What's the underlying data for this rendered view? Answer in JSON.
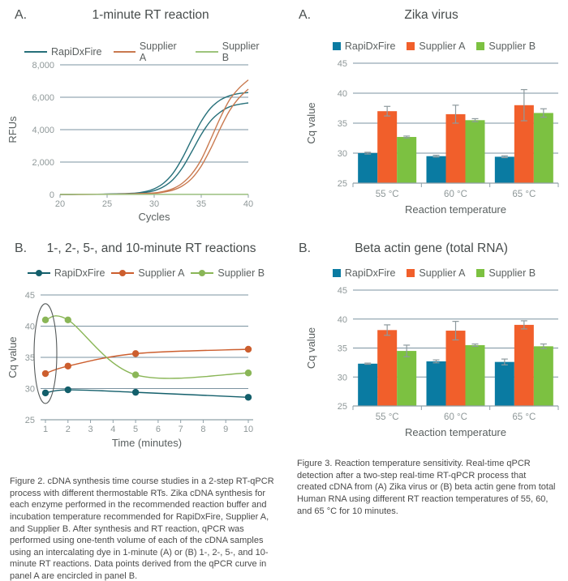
{
  "panels": {
    "fig2a_label": "A.",
    "fig2b_label": "B.",
    "fig3a_label": "A.",
    "fig3b_label": "B."
  },
  "colors": {
    "ampline_series": [
      "#26707a",
      "#c9794f",
      "#9dc47c"
    ],
    "timeline_series": [
      "#135f6b",
      "#cc5e2e",
      "#8ab657"
    ],
    "bar_series": [
      "#0a7ba2",
      "#f15f2b",
      "#7cc141"
    ],
    "gridline": "#7b93a0",
    "axis": "#8fa0a8",
    "tick_text": "#8f9899",
    "axis_title": "#5a6060",
    "error_bar": "#8e9a9e",
    "annotation": "#555a5a"
  },
  "chart_data": [
    {
      "id": "one-minute-rt-amplification",
      "type": "line",
      "panel": "A.",
      "title": "1-minute RT reaction",
      "xlabel": "Cycles",
      "ylabel": "RFUs",
      "xlim": [
        20,
        40
      ],
      "xticks": [
        20,
        25,
        30,
        35,
        40
      ],
      "ylim": [
        0,
        8000
      ],
      "yticks": [
        0,
        2000,
        4000,
        6000,
        8000
      ],
      "grid": true,
      "legend": [
        "RapiDxFire",
        "Supplier A",
        "Supplier B"
      ],
      "series": [
        {
          "name": "RapiDxFire",
          "replicate": 1,
          "points": [
            [
              20,
              5
            ],
            [
              22,
              8
            ],
            [
              24,
              15
            ],
            [
              26,
              40
            ],
            [
              28,
              85
            ],
            [
              29,
              170
            ],
            [
              30,
              350
            ],
            [
              31,
              700
            ],
            [
              32,
              1310
            ],
            [
              33,
              2250
            ],
            [
              34,
              3410
            ],
            [
              35,
              4510
            ],
            [
              36,
              5330
            ],
            [
              37,
              5820
            ],
            [
              38,
              6090
            ],
            [
              39,
              6230
            ],
            [
              40,
              6290
            ]
          ]
        },
        {
          "name": "RapiDxFire",
          "replicate": 2,
          "points": [
            [
              20,
              5
            ],
            [
              22,
              7
            ],
            [
              24,
              12
            ],
            [
              26,
              30
            ],
            [
              28,
              60
            ],
            [
              29,
              120
            ],
            [
              30,
              235
            ],
            [
              31,
              480
            ],
            [
              32,
              920
            ],
            [
              33,
              1650
            ],
            [
              34,
              2650
            ],
            [
              35,
              3700
            ],
            [
              36,
              4540
            ],
            [
              37,
              5070
            ],
            [
              38,
              5410
            ],
            [
              39,
              5560
            ],
            [
              40,
              5650
            ]
          ]
        },
        {
          "name": "Supplier A",
          "replicate": 1,
          "points": [
            [
              20,
              5
            ],
            [
              22,
              6
            ],
            [
              24,
              10
            ],
            [
              26,
              20
            ],
            [
              28,
              45
            ],
            [
              30,
              95
            ],
            [
              31,
              190
            ],
            [
              32,
              360
            ],
            [
              33,
              700
            ],
            [
              34,
              1270
            ],
            [
              35,
              2150
            ],
            [
              36,
              3400
            ],
            [
              37,
              4700
            ],
            [
              38,
              5830
            ],
            [
              39,
              6550
            ],
            [
              40,
              7070
            ]
          ]
        },
        {
          "name": "Supplier A",
          "replicate": 2,
          "points": [
            [
              20,
              5
            ],
            [
              22,
              6
            ],
            [
              24,
              9
            ],
            [
              26,
              16
            ],
            [
              28,
              35
            ],
            [
              30,
              75
            ],
            [
              31,
              145
            ],
            [
              32,
              270
            ],
            [
              33,
              530
            ],
            [
              34,
              990
            ],
            [
              35,
              1750
            ],
            [
              36,
              2820
            ],
            [
              37,
              4050
            ],
            [
              38,
              5160
            ],
            [
              39,
              5950
            ],
            [
              40,
              6500
            ]
          ]
        },
        {
          "name": "Supplier B",
          "replicate": 1,
          "points": [
            [
              20,
              10
            ],
            [
              30,
              10
            ],
            [
              40,
              10
            ]
          ]
        }
      ]
    },
    {
      "id": "rt-time-course",
      "type": "line",
      "panel": "B.",
      "title": "1-, 2-, 5-, and 10-minute RT reactions",
      "xlabel": "Time (minutes)",
      "ylabel": "Cq value",
      "xlim": [
        1,
        10
      ],
      "xticks": [
        1,
        2,
        3,
        4,
        5,
        6,
        7,
        8,
        9,
        10
      ],
      "ylim": [
        25,
        45
      ],
      "yticks": [
        25,
        30,
        35,
        40,
        45
      ],
      "grid": true,
      "legend": [
        "RapiDxFire",
        "Supplier A",
        "Supplier B"
      ],
      "series": [
        {
          "name": "RapiDxFire",
          "x": [
            1,
            2,
            5,
            10
          ],
          "y": [
            29.3,
            29.8,
            29.4,
            28.6
          ]
        },
        {
          "name": "Supplier A",
          "x": [
            1,
            2,
            5,
            10
          ],
          "y": [
            32.4,
            33.6,
            35.6,
            36.3
          ]
        },
        {
          "name": "Supplier B",
          "x": [
            1,
            2,
            5,
            10
          ],
          "y": [
            41.0,
            41.0,
            32.2,
            32.5
          ]
        }
      ],
      "annotation": {
        "type": "ellipse",
        "x": 1,
        "y_center": 35.6,
        "y_radius": 8,
        "x_radius_px": 14,
        "note": "encircles 1-minute data points"
      }
    },
    {
      "id": "zika-virus-cq",
      "type": "bar",
      "panel": "A.",
      "title": "Zika virus",
      "xlabel": "Reaction temperature",
      "ylabel": "Cq value",
      "categories": [
        "55 °C",
        "60 °C",
        "65 °C"
      ],
      "ylim": [
        25,
        45
      ],
      "yticks": [
        25,
        30,
        35,
        40,
        45
      ],
      "grid": true,
      "legend": [
        "RapiDxFire",
        "Supplier A",
        "Supplier B"
      ],
      "series": [
        {
          "name": "RapiDxFire",
          "values": [
            30.0,
            29.5,
            29.4
          ],
          "errors": [
            0.15,
            0.15,
            0.15
          ]
        },
        {
          "name": "Supplier A",
          "values": [
            37.0,
            36.5,
            38.0
          ],
          "errors": [
            0.8,
            1.5,
            2.6
          ]
        },
        {
          "name": "Supplier B",
          "values": [
            32.7,
            35.5,
            36.7
          ],
          "errors": [
            0.15,
            0.25,
            0.7
          ]
        }
      ]
    },
    {
      "id": "beta-actin-cq",
      "type": "bar",
      "panel": "B.",
      "title": "Beta actin gene (total RNA)",
      "xlabel": "Reaction temperature",
      "ylabel": "Cq value",
      "categories": [
        "55 °C",
        "60 °C",
        "65 °C"
      ],
      "ylim": [
        25,
        45
      ],
      "yticks": [
        25,
        30,
        35,
        40,
        45
      ],
      "grid": true,
      "legend": [
        "RapiDxFire",
        "Supplier A",
        "Supplier B"
      ],
      "series": [
        {
          "name": "RapiDxFire",
          "values": [
            32.3,
            32.7,
            32.6
          ],
          "errors": [
            0.1,
            0.25,
            0.5
          ]
        },
        {
          "name": "Supplier A",
          "values": [
            38.1,
            38.0,
            39.0
          ],
          "errors": [
            0.9,
            1.6,
            0.7
          ]
        },
        {
          "name": "Supplier B",
          "values": [
            34.5,
            35.5,
            35.3
          ],
          "errors": [
            1.0,
            0.2,
            0.4
          ]
        }
      ]
    }
  ],
  "captions": {
    "figure2": "Figure 2. cDNA synthesis time course studies in a 2-step RT-qPCR process with different thermostable RTs. Zika cDNA synthesis for each enzyme performed in the recommended reaction buffer and incubation temperature recommended for RapiDxFire, Supplier A, and Supplier B. After synthesis and RT reaction, qPCR was performed using one-tenth volume of each of the cDNA samples using an intercalating dye in 1-minute (A) or (B) 1-, 2-, 5-, and 10-minute RT reactions. Data points derived from the qPCR curve in panel A are encircled in panel B.",
    "figure3": "Figure 3. Reaction temperature sensitivity. Real-time qPCR detection after a two-step real-time RT-qPCR process that created cDNA from (A) Zika virus or (B) beta actin gene from total Human RNA using different RT reaction temperatures of 55, 60, and 65 °C for 10 minutes."
  }
}
